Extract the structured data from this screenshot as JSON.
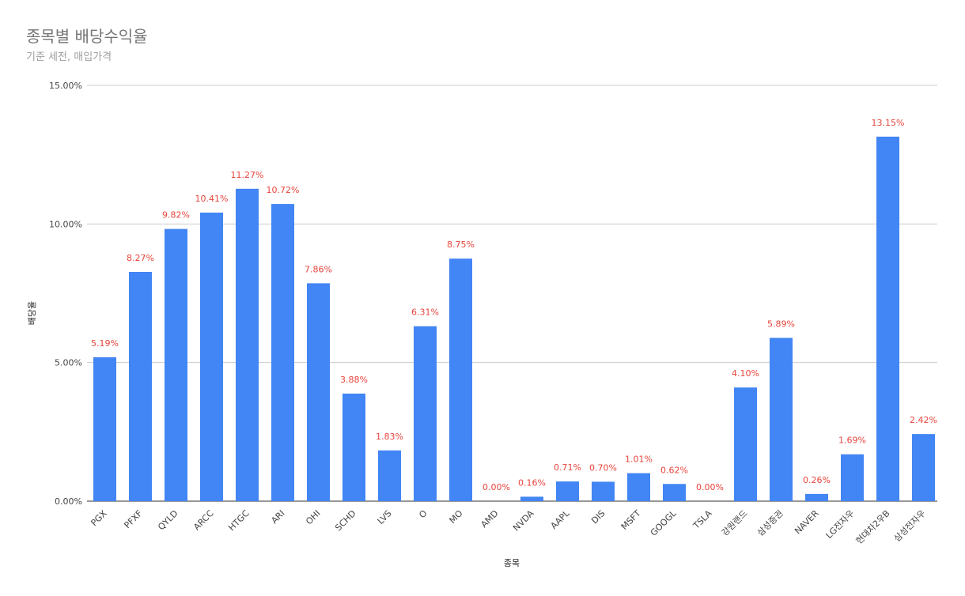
{
  "chart_data": {
    "type": "bar",
    "title": "종목별 배당수익율",
    "subtitle": "기준 세전, 매입가격",
    "xlabel": "종목",
    "ylabel": "배당율",
    "ylim": [
      0,
      15
    ],
    "yticks": [
      "0.00%",
      "5.00%",
      "10.00%",
      "15.00%"
    ],
    "grid": true,
    "categories": [
      "PGX",
      "PFXF",
      "QYLD",
      "ARCC",
      "HTGC",
      "ARI",
      "OHI",
      "SCHD",
      "LVS",
      "O",
      "MO",
      "AMD",
      "NVDA",
      "AAPL",
      "DIS",
      "MSFT",
      "GOOGL",
      "TSLA",
      "강원랜드",
      "삼성증권",
      "NAVER",
      "LG전자우",
      "현대차2우B",
      "삼성전자우"
    ],
    "values": [
      5.19,
      8.27,
      9.82,
      10.41,
      11.27,
      10.72,
      7.86,
      3.88,
      1.83,
      6.31,
      8.75,
      0.0,
      0.16,
      0.71,
      0.7,
      1.01,
      0.62,
      0.0,
      4.1,
      5.89,
      0.26,
      1.69,
      13.15,
      2.42
    ],
    "data_labels": [
      "5.19%",
      "8.27%",
      "9.82%",
      "10.41%",
      "11.27%",
      "10.72%",
      "7.86%",
      "3.88%",
      "1.83%",
      "6.31%",
      "8.75%",
      "0.00%",
      "0.16%",
      "0.71%",
      "0.70%",
      "1.01%",
      "0.62%",
      "0.00%",
      "4.10%",
      "5.89%",
      "0.26%",
      "1.69%",
      "13.15%",
      "2.42%"
    ],
    "colors": {
      "bar": "#4285f4",
      "data_label": "#e8453c",
      "grid": "#cccccc",
      "axis": "#333333"
    }
  }
}
